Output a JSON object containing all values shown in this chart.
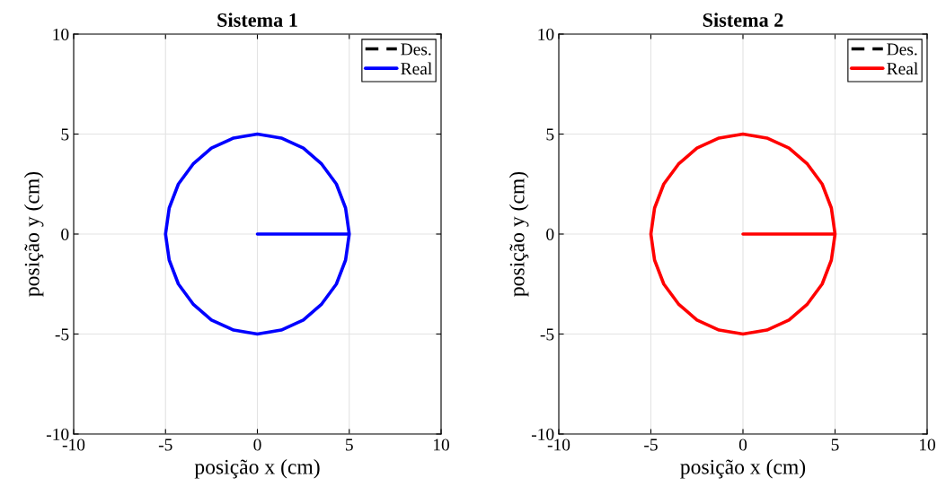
{
  "chart_data": [
    {
      "type": "line",
      "title": "Sistema 1",
      "xlabel": "posição x (cm)",
      "ylabel": "posição y (cm)",
      "xlim": [
        -10,
        10
      ],
      "ylim": [
        -10,
        10
      ],
      "xticks": [
        -10,
        -5,
        0,
        5,
        10
      ],
      "yticks": [
        -10,
        -5,
        0,
        5,
        10
      ],
      "grid": true,
      "legend": "top right",
      "series": [
        {
          "name": "Des.",
          "color": "#000000",
          "line_style": "dashed"
        },
        {
          "name": "Real",
          "color": "#0000ff",
          "line_style": "solid",
          "x": [
            0,
            5,
            4.8,
            4.3,
            3.5,
            2.5,
            1.3,
            0,
            -1.3,
            -2.5,
            -3.5,
            -4.3,
            -4.8,
            -5,
            -4.8,
            -4.3,
            -3.5,
            -2.5,
            -1.3,
            0,
            1.3,
            2.5,
            3.5,
            4.3,
            4.8,
            5
          ],
          "values": [
            0,
            0,
            1.3,
            2.5,
            3.5,
            4.3,
            4.8,
            5,
            4.8,
            4.3,
            3.5,
            2.5,
            1.3,
            0,
            -1.3,
            -2.5,
            -3.5,
            -4.3,
            -4.8,
            -5,
            -4.8,
            -4.3,
            -3.5,
            -2.5,
            -1.3,
            0
          ]
        }
      ]
    },
    {
      "type": "line",
      "title": "Sistema 2",
      "xlabel": "posição x (cm)",
      "ylabel": "posição y (cm)",
      "xlim": [
        -10,
        10
      ],
      "ylim": [
        -10,
        10
      ],
      "xticks": [
        -10,
        -5,
        0,
        5,
        10
      ],
      "yticks": [
        -10,
        -5,
        0,
        5,
        10
      ],
      "grid": true,
      "legend": "top right",
      "series": [
        {
          "name": "Des.",
          "color": "#000000",
          "line_style": "dashed"
        },
        {
          "name": "Real",
          "color": "#ff0000",
          "line_style": "solid",
          "x": [
            0,
            5,
            4.8,
            4.3,
            3.5,
            2.5,
            1.3,
            0,
            -1.3,
            -2.5,
            -3.5,
            -4.3,
            -4.8,
            -5,
            -4.8,
            -4.3,
            -3.5,
            -2.5,
            -1.3,
            0,
            1.3,
            2.5,
            3.5,
            4.3,
            4.8,
            5
          ],
          "values": [
            0,
            0,
            1.3,
            2.5,
            3.5,
            4.3,
            4.8,
            5,
            4.8,
            4.3,
            3.5,
            2.5,
            1.3,
            0,
            -1.3,
            -2.5,
            -3.5,
            -4.3,
            -4.8,
            -5,
            -4.8,
            -4.3,
            -3.5,
            -2.5,
            -1.3,
            0
          ]
        }
      ]
    }
  ]
}
